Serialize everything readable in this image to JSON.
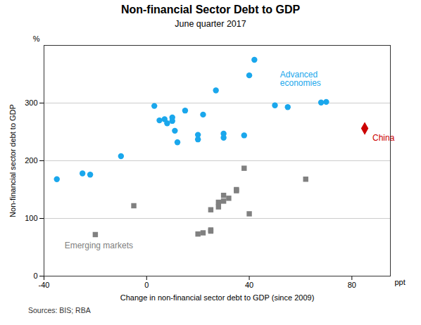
{
  "chart_data": {
    "type": "scatter",
    "title": "Non-financial Sector Debt to GDP",
    "subtitle": "June quarter 2017",
    "xlabel": "Change in non-financial sector debt to GDP (since 2009)",
    "ylabel": "Non-financial sector debt to GDP",
    "x_unit": "ppt",
    "y_unit": "%",
    "source": "Sources: BIS; RBA",
    "xlim": [
      -40,
      95
    ],
    "ylim": [
      0,
      400
    ],
    "xticks": [
      -40,
      0,
      40,
      80
    ],
    "yticks": [
      0,
      100,
      200,
      300
    ],
    "grid": "y",
    "series": [
      {
        "color": "#1aa7ec",
        "marker": "circle",
        "x": [
          -35,
          -25,
          -22,
          -10,
          3,
          5,
          7,
          8,
          10,
          10,
          11,
          12,
          15,
          20,
          20,
          22,
          27,
          30,
          30,
          38,
          40,
          42,
          50,
          55,
          68,
          70
        ],
        "values": [
          168,
          178,
          176,
          208,
          295,
          270,
          272,
          265,
          275,
          269,
          252,
          232,
          287,
          245,
          237,
          280,
          322,
          247,
          240,
          244,
          348,
          375,
          296,
          293,
          301,
          302
        ]
      },
      {
        "color": "#808080",
        "marker": "square",
        "x": [
          -20,
          -5,
          20,
          22,
          25,
          25,
          25,
          28,
          28,
          30,
          30,
          32,
          35,
          35,
          38,
          40,
          62
        ],
        "values": [
          72,
          122,
          73,
          75,
          80,
          78,
          115,
          128,
          120,
          140,
          130,
          135,
          148,
          150,
          187,
          108,
          168
        ]
      },
      {
        "color": "#cc0000",
        "marker": "diamond",
        "x": [
          85
        ],
        "values": [
          256
        ]
      }
    ],
    "annotations": [
      {
        "text": "Advanced\neconomies",
        "x": 52,
        "y": 355,
        "color": "#1aa7ec"
      },
      {
        "text": "Emerging markets",
        "x": -32,
        "y": 58,
        "color": "#808080"
      },
      {
        "text": "China",
        "x": 88,
        "y": 245,
        "color": "#cc0000"
      }
    ]
  }
}
